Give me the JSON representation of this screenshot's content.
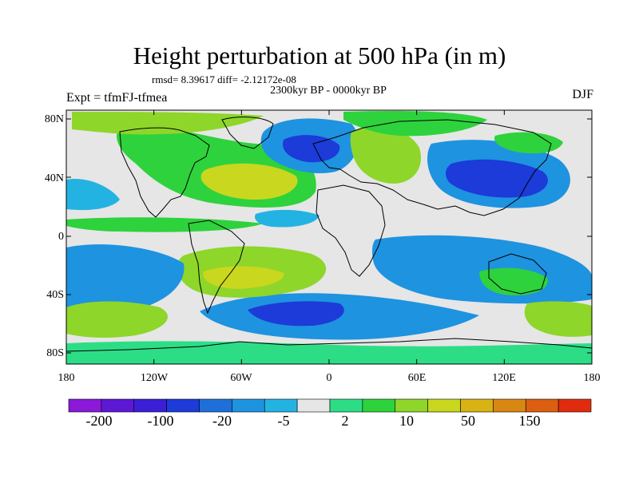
{
  "title": "Height perturbation at 500 hPa (in m)",
  "stats": "rmsd= 8.39617  diff= -2.12172e-08",
  "period": "2300kyr BP - 0000kyr BP",
  "experiment": "Expt = tfmFJ-tfmea",
  "season": "DJF",
  "lat_ticks": [
    "80N",
    "40N",
    "0",
    "40S",
    "80S"
  ],
  "lon_ticks": [
    "180",
    "120W",
    "60W",
    "0",
    "60E",
    "120E",
    "180"
  ],
  "colorbar": {
    "colors": [
      "#8a19d8",
      "#5d18d6",
      "#3b1fd6",
      "#1c3bd8",
      "#1f6fdb",
      "#1e93e0",
      "#23b3e3",
      "#e6e6e6",
      "#2ddd86",
      "#2ed23c",
      "#8ed62a",
      "#c9d71e",
      "#d8b313",
      "#d88812",
      "#dc5e10",
      "#e02c0e"
    ],
    "labels": [
      "-200",
      "-100",
      "-20",
      "-5",
      "2",
      "10",
      "50",
      "150"
    ]
  },
  "map": {
    "background": "#e6e6e6",
    "region_names": [
      "north-atlantic-positive-anomaly",
      "north-atlantic-peak",
      "arctic-canada-positive",
      "northwest-europe-negative",
      "europe-core-negative",
      "eastern-europe-positive",
      "east-asia-negative",
      "east-asia-core-negative",
      "north-pacific-negative",
      "arctic-siberia-positive",
      "bering-positive",
      "southern-ocean-negative",
      "south-atlantic-core-negative",
      "south-america-positive",
      "south-america-peak",
      "south-pacific-negative",
      "south-pacific-positive",
      "indian-ocean-negative",
      "australia-positive",
      "southeast-pacific-positive",
      "antarctic-positive",
      "tropical-band-light",
      "equatorial-atlantic-negative"
    ]
  }
}
